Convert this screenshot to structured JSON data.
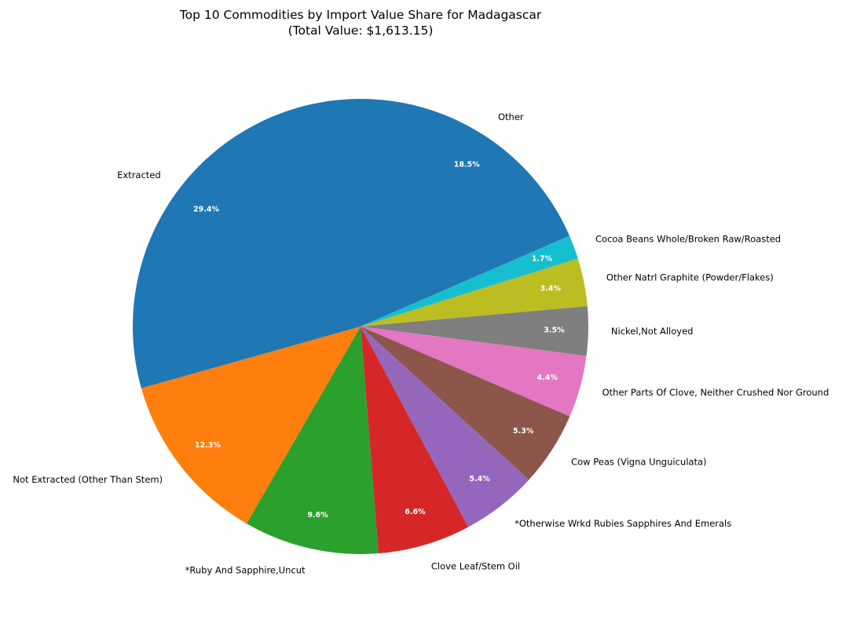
{
  "chart_data": {
    "type": "pie",
    "title_line1": "Top 10 Commodities by Import Value Share for Madagascar",
    "title_line2": "(Total Value: $1,613.15)",
    "slices": [
      {
        "label": "Other",
        "pct": 18.5,
        "pct_label": "18.5%",
        "color": "#1f77b4"
      },
      {
        "label": "Cocoa Beans Whole/Broken Raw/Roasted",
        "pct": 1.7,
        "pct_label": "1.7%",
        "color": "#17becf"
      },
      {
        "label": "Other Natrl Graphite (Powder/Flakes)",
        "pct": 3.4,
        "pct_label": "3.4%",
        "color": "#bcbd22"
      },
      {
        "label": "Nickel,Not Alloyed",
        "pct": 3.5,
        "pct_label": "3.5%",
        "color": "#7f7f7f"
      },
      {
        "label": "Other Parts Of Clove, Neither Crushed Nor Ground",
        "pct": 4.4,
        "pct_label": "4.4%",
        "color": "#e377c2"
      },
      {
        "label": "Cow Peas (Vigna Unguiculata)",
        "pct": 5.3,
        "pct_label": "5.3%",
        "color": "#8c564b"
      },
      {
        "label": "*Otherwise Wrkd Rubies Sapphires And Emerals",
        "pct": 5.4,
        "pct_label": "5.4%",
        "color": "#9467bd"
      },
      {
        "label": "Clove Leaf/Stem Oil",
        "pct": 6.6,
        "pct_label": "6.6%",
        "color": "#d62728"
      },
      {
        "label": "*Ruby And Sapphire,Uncut",
        "pct": 9.6,
        "pct_label": "9.6%",
        "color": "#2ca02c"
      },
      {
        "label": "Not Extracted (Other Than Stem)",
        "pct": 12.3,
        "pct_label": "12.3%",
        "color": "#ff7f0e"
      },
      {
        "label": "Extracted",
        "pct": 29.4,
        "pct_label": "29.4%",
        "color": "#1f77b4"
      }
    ],
    "start_angle": "top (12 o'clock), clockwise",
    "legend": "none",
    "grid": false
  }
}
